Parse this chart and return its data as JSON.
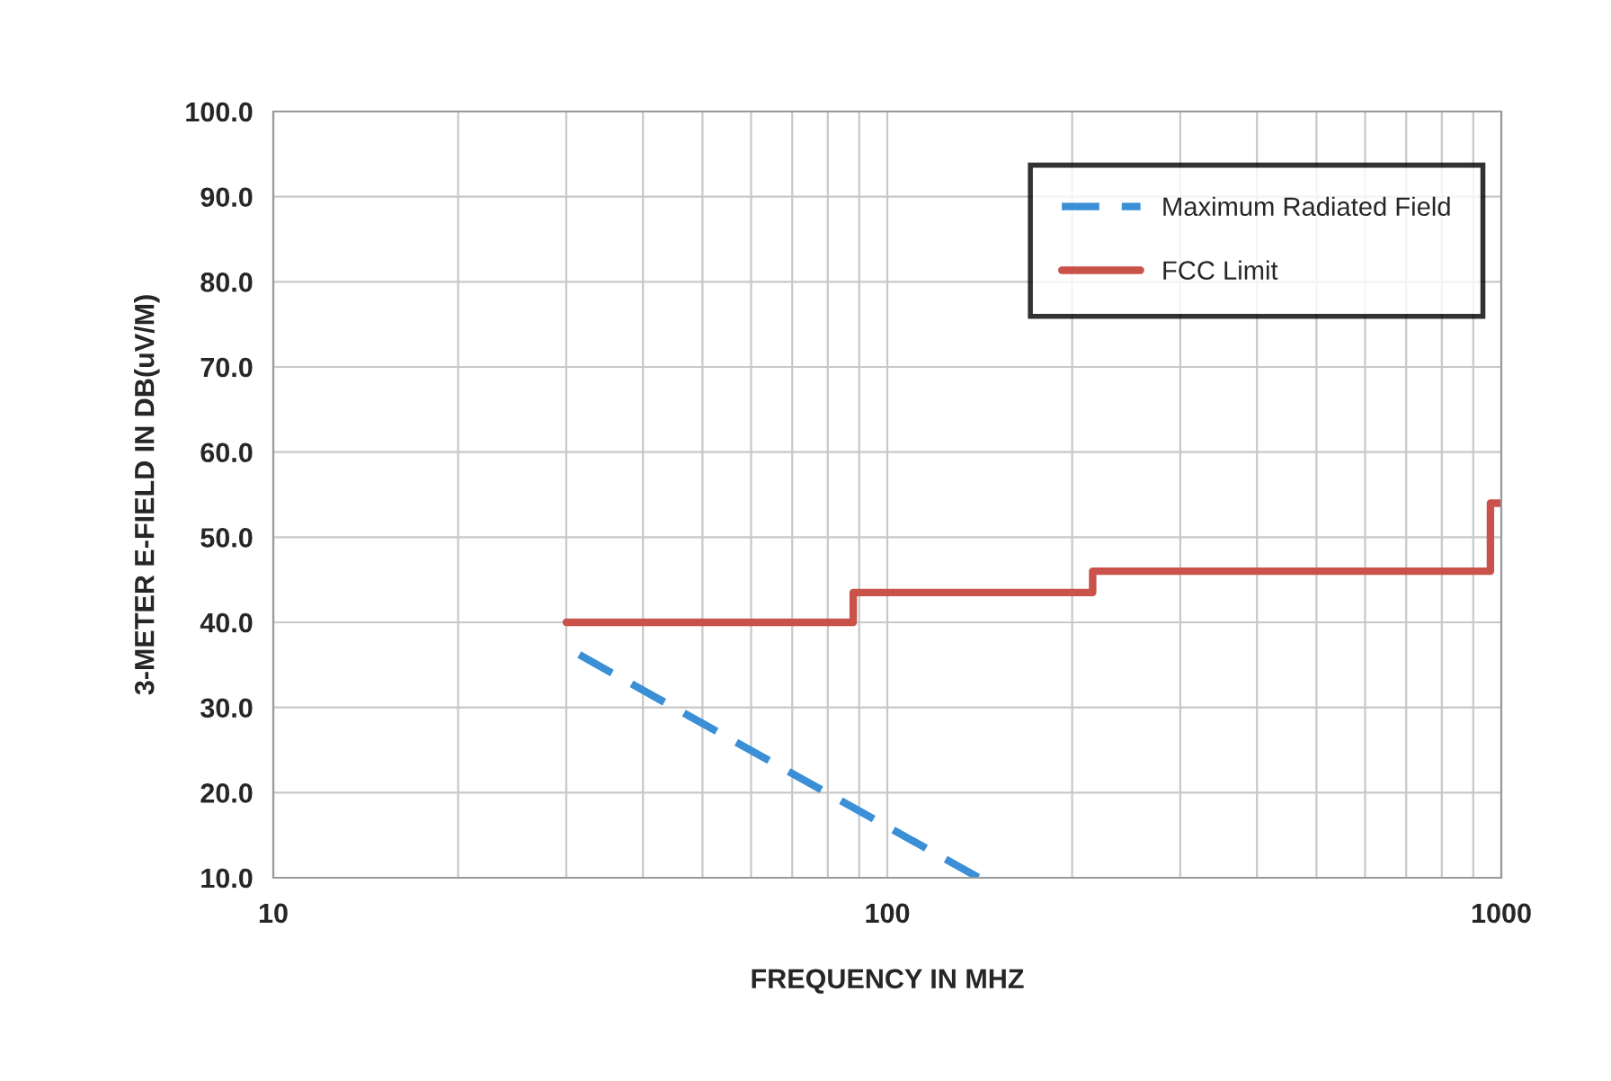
{
  "chart_data": {
    "type": "line",
    "xlabel": "FREQUENCY IN MHZ",
    "ylabel": "3-METER E-FIELD IN DB(uV/M)",
    "series": [
      {
        "name": "Maximum Radiated Field",
        "color": "#3a8fd6",
        "line_style": "dashed",
        "x": [
          31.5,
          141
        ],
        "values": [
          36.2,
          10
        ]
      },
      {
        "name": "FCC Limit",
        "color": "#c9524a",
        "type": "step",
        "line_style": "solid",
        "x": [
          30,
          88,
          216,
          960,
          1000
        ],
        "values": [
          40,
          43.5,
          46,
          54,
          54
        ]
      }
    ],
    "log": "x",
    "xlim": [
      10,
      1000
    ],
    "xticks": [
      10,
      100,
      1000
    ],
    "ylim": [
      10,
      100
    ],
    "yticks": [
      {
        "value": 10,
        "label": "10.0"
      },
      {
        "value": 20,
        "label": "20.0"
      },
      {
        "value": 30,
        "label": "30.0"
      },
      {
        "value": 40,
        "label": "40.0"
      },
      {
        "value": 50,
        "label": "50.0"
      },
      {
        "value": 60,
        "label": "60.0"
      },
      {
        "value": 70,
        "label": "70.0"
      },
      {
        "value": 80,
        "label": "80.0"
      },
      {
        "value": 90,
        "label": "90.0"
      },
      {
        "value": 100,
        "label": "100.0"
      }
    ],
    "grid": true,
    "legend": "top right",
    "marker": "none"
  }
}
